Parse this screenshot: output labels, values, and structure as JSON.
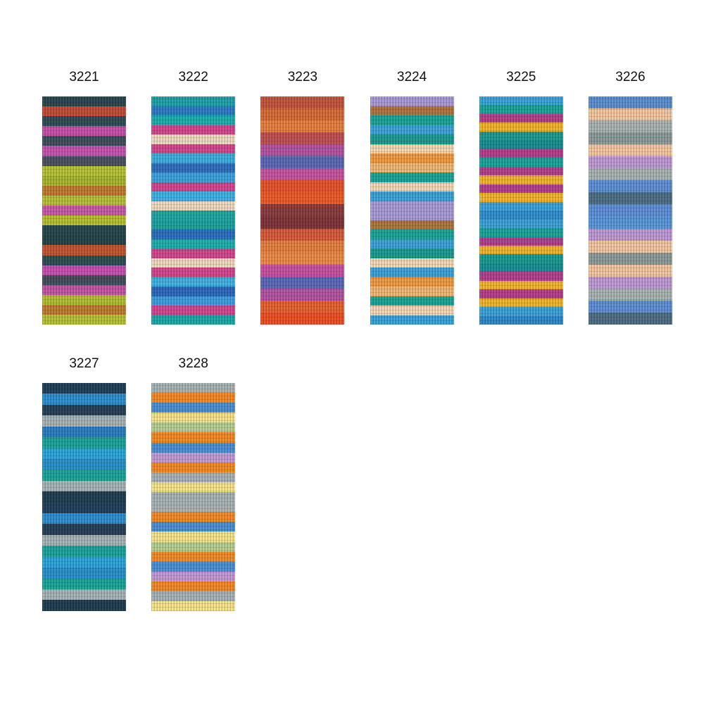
{
  "swatches": [
    {
      "code": "3221",
      "stripes": [
        "#27454f",
        "#c44a33",
        "#2f4b55",
        "#c64fa9",
        "#3a4e5a",
        "#c653b0",
        "#4a5060",
        "#b7c432",
        "#a7b52f",
        "#c07a2e",
        "#b5c036",
        "#c858a8",
        "#b3c130",
        "#26454f",
        "#23414a",
        "#c3542f",
        "#2c4b55",
        "#c64fb2",
        "#444c5a",
        "#c453a8",
        "#b2c131",
        "#c27a30",
        "#b6c235"
      ]
    },
    {
      "code": "3222",
      "stripes": [
        "#1ba4a9",
        "#2a7bc6",
        "#1bb0ae",
        "#d5448e",
        "#f0dcc0",
        "#d5448e",
        "#3ab0e0",
        "#2c6fc0",
        "#3aa2e0",
        "#d5448e",
        "#3ab5e5",
        "#f0dcc0",
        "#1da7a5",
        "#1aa3a0",
        "#2a6fc0",
        "#1db0b0",
        "#d5448e",
        "#f0dcc0",
        "#d5448e",
        "#3ab5e5",
        "#2a68be",
        "#3a9fe0",
        "#d5448e",
        "#1aa9a8"
      ]
    },
    {
      "code": "3223",
      "stripes": [
        "#c5543d",
        "#d86a35",
        "#e8803f",
        "#c04f52",
        "#b453a0",
        "#5a68b8",
        "#c853a0",
        "#e8532a",
        "#f05a25",
        "#8a3a3c",
        "#7f3338",
        "#d95a38",
        "#e8803f",
        "#f08a45",
        "#c950a0",
        "#5a68b8",
        "#b453a0",
        "#e8602d",
        "#f04e22"
      ]
    },
    {
      "code": "3224",
      "stripes": [
        "#a99ad6",
        "#b0743e",
        "#1ba598",
        "#3aa3da",
        "#1a9b8f",
        "#f5d9b2",
        "#f39a3e",
        "#f3b772",
        "#1ba598",
        "#f5d9b2",
        "#3aa3da",
        "#a99ad6",
        "#a99ad6",
        "#b0743e",
        "#1ba598",
        "#3aa3da",
        "#1a9b8f",
        "#f5d9b2",
        "#3aa3da",
        "#f39a3e",
        "#f3b772",
        "#1ba598",
        "#f5d9b2",
        "#3aa3da"
      ]
    },
    {
      "code": "3225",
      "stripes": [
        "#35a6dc",
        "#1aa59a",
        "#b63e8c",
        "#f3b52a",
        "#1a9b8f",
        "#168f95",
        "#b63e8c",
        "#1aa59a",
        "#b63e8c",
        "#f3b52a",
        "#b63e8c",
        "#f3b52a",
        "#3aa3da",
        "#2f8fd0",
        "#3aa3da",
        "#1aa59a",
        "#b63e8c",
        "#f3b52a",
        "#1a9b8f",
        "#168f95",
        "#b63e8c",
        "#f3b52a",
        "#b63e8c",
        "#f3b52a",
        "#3aa3da",
        "#2f88cc"
      ]
    },
    {
      "code": "3226",
      "stripes": [
        "#5a8fd0",
        "#f5c7a0",
        "#a9b4b3",
        "#8e9a9a",
        "#f5c7a0",
        "#c09ad6",
        "#a9b4b3",
        "#5d8fd8",
        "#4d6e84",
        "#5d8fd8",
        "#5a96dc",
        "#c09ad6",
        "#f5c7a0",
        "#8e9a9a",
        "#f5c7a0",
        "#c09ad6",
        "#a9b4b3",
        "#5d8fd8",
        "#4d6e84"
      ]
    },
    {
      "code": "3227",
      "stripes": [
        "#1e3e55",
        "#2b8fd0",
        "#243f55",
        "#a8b4b6",
        "#2b7cc0",
        "#1aa59a",
        "#2ba5dc",
        "#2890cc",
        "#1aa59a",
        "#a8b4b6",
        "#1e3c50",
        "#1f3f57",
        "#2b8fd0",
        "#243f55",
        "#a8b4b6",
        "#1aa59a",
        "#2ba5dc",
        "#2890cc",
        "#1aa59a",
        "#a8b4b6",
        "#1e3c50"
      ]
    },
    {
      "code": "3228",
      "stripes": [
        "#a8b4b6",
        "#f58a25",
        "#4a90d6",
        "#f8e58a",
        "#b7d090",
        "#f58a25",
        "#4a90d6",
        "#c49ad6",
        "#f58a25",
        "#a8b4b6",
        "#f8e58a",
        "#a8b4b6",
        "#a8b4b6",
        "#f58a25",
        "#4a90d6",
        "#f8e58a",
        "#b7d090",
        "#f58a25",
        "#4a90d6",
        "#c49ad6",
        "#f58a25",
        "#a8b4b6",
        "#f8e58a"
      ]
    }
  ]
}
